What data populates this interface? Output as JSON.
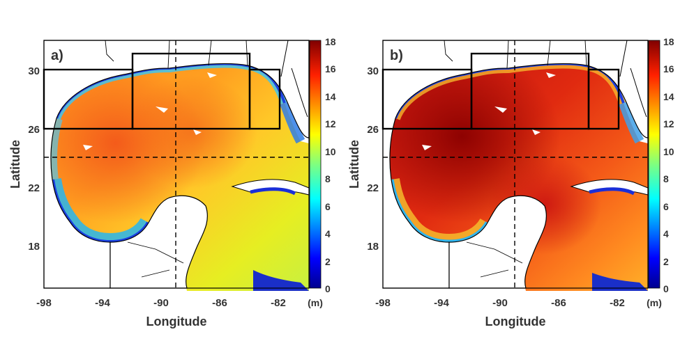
{
  "panels": [
    {
      "label": "a)"
    },
    {
      "label": "b)"
    }
  ],
  "axes": {
    "xlabel": "Longitude",
    "ylabel": "Latitude",
    "xticks": [
      "-98",
      "-94",
      "-90",
      "-86",
      "-82"
    ],
    "yticks": [
      "30",
      "26",
      "22",
      "18"
    ]
  },
  "colorbar": {
    "ticks": [
      "18",
      "16",
      "14",
      "12",
      "10",
      "8",
      "6",
      "4",
      "2",
      "0"
    ],
    "unit": "(m)"
  },
  "colors": {
    "deep_red": "#8b0000",
    "red": "#e22a10",
    "orange": "#ff9a1e",
    "yellow": "#f2ec1c",
    "cyan": "#2fd2e6",
    "blue": "#1e5fe6",
    "dark_blue": "#0a0a8c",
    "land": "#ffffff",
    "coast": "#000000"
  }
}
